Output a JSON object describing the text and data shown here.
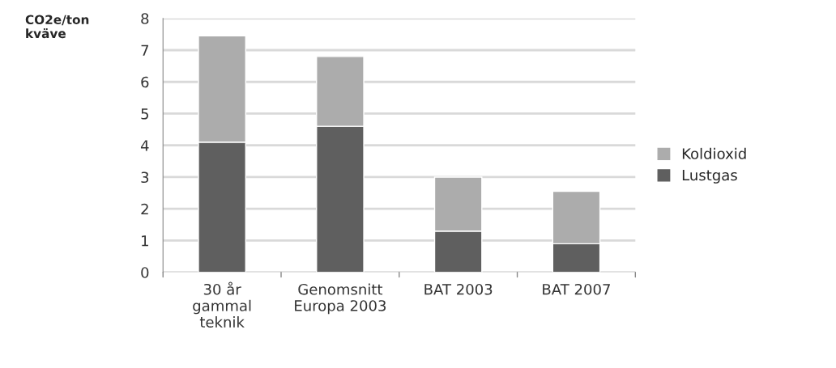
{
  "chart_data": {
    "type": "bar",
    "ylabel": "CO2e/ton\nkväve",
    "categories": [
      "30 år\ngammal\nteknik",
      "Genomsnitt\nEuropa 2003",
      "BAT 2003",
      "BAT 2007"
    ],
    "stacked": true,
    "series": [
      {
        "name": "Lustgas",
        "color": "#5f5f5f",
        "values": [
          4.1,
          4.6,
          1.3,
          0.9
        ]
      },
      {
        "name": "Koldioxid",
        "color": "#acacac",
        "values": [
          3.35,
          2.2,
          1.7,
          1.65
        ]
      }
    ],
    "ylim": [
      0,
      8
    ],
    "yticks": [
      0,
      1,
      2,
      3,
      4,
      5,
      6,
      7,
      8
    ],
    "grid": "y",
    "legend": "right"
  }
}
